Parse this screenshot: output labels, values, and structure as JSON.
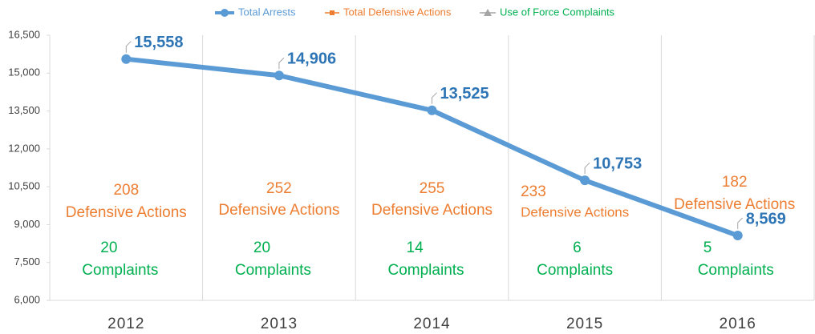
{
  "chart_data": {
    "type": "line",
    "categories": [
      "2012",
      "2013",
      "2014",
      "2015",
      "2016"
    ],
    "series": [
      {
        "name": "Total Arrests",
        "color": "#5b9bd5",
        "label_color": "#2e75b6",
        "values": [
          15558,
          14906,
          13525,
          10753,
          8569
        ],
        "value_labels": [
          "15,558",
          "14,906",
          "13,525",
          "10,753",
          "8,569"
        ]
      },
      {
        "name": "Total Defensive Actions",
        "color": "#ed7d31",
        "label": "Defensive Actions",
        "values": [
          208,
          252,
          255,
          233,
          182
        ]
      },
      {
        "name": "Use of Force Complaints",
        "color": "#00b050",
        "marker_color": "#a5a5a5",
        "label": "Complaints",
        "values": [
          20,
          20,
          14,
          6,
          5
        ]
      }
    ],
    "ylim": [
      6000,
      16500
    ],
    "yticks": [
      {
        "value": 6000,
        "label": "6,000"
      },
      {
        "value": 7500,
        "label": "7,500"
      },
      {
        "value": 9000,
        "label": "9,000"
      },
      {
        "value": 10500,
        "label": "10,500"
      },
      {
        "value": 12000,
        "label": "12,000"
      },
      {
        "value": 13500,
        "label": "13,500"
      },
      {
        "value": 15000,
        "label": "15,000"
      },
      {
        "value": 16500,
        "label": "16,500"
      }
    ],
    "legend": "top"
  }
}
